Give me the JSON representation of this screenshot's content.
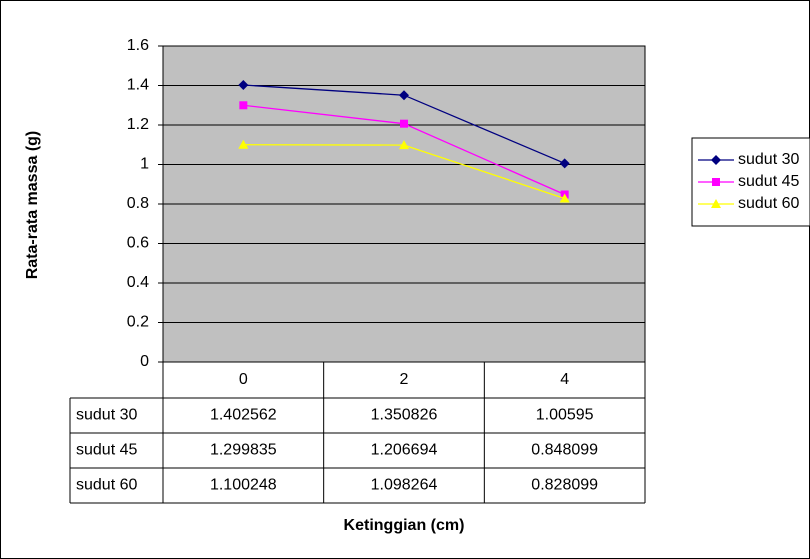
{
  "chart_data": {
    "type": "line",
    "x_label": "Ketinggian (cm)",
    "y_label": "Rata-rata massa (g)",
    "categories": [
      "0",
      "2",
      "4"
    ],
    "series": [
      {
        "name": "sudut 30",
        "color": "#000080",
        "marker": "diamond",
        "values": [
          1.402562,
          1.350826,
          1.00595
        ]
      },
      {
        "name": "sudut 45",
        "color": "#ff00ff",
        "marker": "square",
        "values": [
          1.299835,
          1.206694,
          0.848099
        ]
      },
      {
        "name": "sudut 60",
        "color": "#ffff00",
        "marker": "triangle",
        "values": [
          1.100248,
          1.098264,
          0.828099
        ]
      }
    ],
    "ylim": [
      0,
      1.6
    ],
    "yticks": [
      0,
      0.2,
      0.4,
      0.6,
      0.8,
      1,
      1.2,
      1.4,
      1.6
    ],
    "grid": true,
    "legend": "right",
    "plot_background": "#c0c0c0",
    "data_table": true
  }
}
